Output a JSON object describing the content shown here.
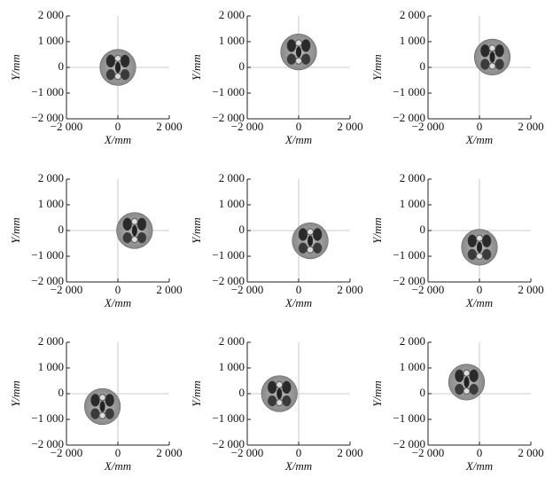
{
  "chart_data": [
    {
      "type": "scatter",
      "x": [
        0
      ],
      "values": [
        0
      ],
      "radius": [
        700
      ],
      "xlim": [
        -2000,
        2000
      ],
      "ylim": [
        -2000,
        2000
      ],
      "xticks": [
        {
          "value": -2000,
          "label": "−2 000"
        },
        0,
        {
          "value": 2000,
          "label": "2 000"
        }
      ],
      "yticks": [
        {
          "value": -2000,
          "label": "−2 000"
        },
        {
          "value": -1000,
          "label": "−1 000"
        },
        0,
        {
          "value": 1000,
          "label": "1 000"
        },
        {
          "value": 2000,
          "label": "2 000"
        }
      ],
      "xlabel": "X/mm",
      "ylabel": "Y/mm",
      "zero_lines": true
    },
    {
      "type": "scatter",
      "x": [
        0
      ],
      "values": [
        600
      ],
      "radius": [
        700
      ],
      "xlim": [
        -2000,
        2000
      ],
      "ylim": [
        -2000,
        2000
      ],
      "xticks": [
        {
          "value": -2000,
          "label": "−2 000"
        },
        0,
        {
          "value": 2000,
          "label": "2 000"
        }
      ],
      "yticks": [
        {
          "value": -2000,
          "label": "−2 000"
        },
        {
          "value": -1000,
          "label": "−1 000"
        },
        0,
        {
          "value": 1000,
          "label": "1 000"
        },
        {
          "value": 2000,
          "label": "2 000"
        }
      ],
      "xlabel": "X/mm",
      "ylabel": "Y/mm",
      "zero_lines": true
    },
    {
      "type": "scatter",
      "x": [
        500
      ],
      "values": [
        400
      ],
      "radius": [
        700
      ],
      "xlim": [
        -2000,
        2000
      ],
      "ylim": [
        -2000,
        2000
      ],
      "xticks": [
        {
          "value": -2000,
          "label": "−2 000"
        },
        0,
        {
          "value": 2000,
          "label": "2 000"
        }
      ],
      "yticks": [
        {
          "value": -2000,
          "label": "−2 000"
        },
        {
          "value": -1000,
          "label": "−1 000"
        },
        0,
        {
          "value": 1000,
          "label": "1 000"
        },
        {
          "value": 2000,
          "label": "2 000"
        }
      ],
      "xlabel": "X/mm",
      "ylabel": "Y/mm",
      "zero_lines": true
    },
    {
      "type": "scatter",
      "x": [
        650
      ],
      "values": [
        0
      ],
      "radius": [
        700
      ],
      "xlim": [
        -2000,
        2000
      ],
      "ylim": [
        -2000,
        2000
      ],
      "xticks": [
        {
          "value": -2000,
          "label": "−2 000"
        },
        0,
        {
          "value": 2000,
          "label": "2 000"
        }
      ],
      "yticks": [
        {
          "value": -2000,
          "label": "−2 000"
        },
        {
          "value": -1000,
          "label": "−1 000"
        },
        0,
        {
          "value": 1000,
          "label": "1 000"
        },
        {
          "value": 2000,
          "label": "2 000"
        }
      ],
      "xlabel": "X/mm",
      "ylabel": "Y/mm",
      "zero_lines": true
    },
    {
      "type": "scatter",
      "x": [
        450
      ],
      "values": [
        -400
      ],
      "radius": [
        700
      ],
      "xlim": [
        -2000,
        2000
      ],
      "ylim": [
        -2000,
        2000
      ],
      "xticks": [
        {
          "value": -2000,
          "label": "−2 000"
        },
        0,
        {
          "value": 2000,
          "label": "2 000"
        }
      ],
      "yticks": [
        {
          "value": -2000,
          "label": "−2 000"
        },
        {
          "value": -1000,
          "label": "−1 000"
        },
        0,
        {
          "value": 1000,
          "label": "1 000"
        },
        {
          "value": 2000,
          "label": "2 000"
        }
      ],
      "xlabel": "X/mm",
      "ylabel": "Y/mm",
      "zero_lines": true
    },
    {
      "type": "scatter",
      "x": [
        0
      ],
      "values": [
        -650
      ],
      "radius": [
        700
      ],
      "xlim": [
        -2000,
        2000
      ],
      "ylim": [
        -2000,
        2000
      ],
      "xticks": [
        {
          "value": -2000,
          "label": "−2 000"
        },
        0,
        {
          "value": 2000,
          "label": "2 000"
        }
      ],
      "yticks": [
        {
          "value": -2000,
          "label": "−2 000"
        },
        {
          "value": -1000,
          "label": "−1 000"
        },
        0,
        {
          "value": 1000,
          "label": "1 000"
        },
        {
          "value": 2000,
          "label": "2 000"
        }
      ],
      "xlabel": "X/mm",
      "ylabel": "Y/mm",
      "zero_lines": true
    },
    {
      "type": "scatter",
      "x": [
        -600
      ],
      "values": [
        -500
      ],
      "radius": [
        700
      ],
      "xlim": [
        -2000,
        2000
      ],
      "ylim": [
        -2000,
        2000
      ],
      "xticks": [
        {
          "value": -2000,
          "label": "−2 000"
        },
        0,
        {
          "value": 2000,
          "label": "2 000"
        }
      ],
      "yticks": [
        {
          "value": -2000,
          "label": "−2 000"
        },
        {
          "value": -1000,
          "label": "−1 000"
        },
        0,
        {
          "value": 1000,
          "label": "1 000"
        },
        {
          "value": 2000,
          "label": "2 000"
        }
      ],
      "xlabel": "X/mm",
      "ylabel": "Y/mm",
      "zero_lines": true
    },
    {
      "type": "scatter",
      "x": [
        -750
      ],
      "values": [
        0
      ],
      "radius": [
        700
      ],
      "xlim": [
        -2000,
        2000
      ],
      "ylim": [
        -2000,
        2000
      ],
      "xticks": [
        {
          "value": -2000,
          "label": "−2 000"
        },
        0,
        {
          "value": 2000,
          "label": "2 000"
        }
      ],
      "yticks": [
        {
          "value": -2000,
          "label": "−2 000"
        },
        {
          "value": -1000,
          "label": "−1 000"
        },
        0,
        {
          "value": 1000,
          "label": "1 000"
        },
        {
          "value": 2000,
          "label": "2 000"
        }
      ],
      "xlabel": "X/mm",
      "ylabel": "Y/mm",
      "zero_lines": true
    },
    {
      "type": "scatter",
      "x": [
        -500
      ],
      "values": [
        450
      ],
      "radius": [
        700
      ],
      "xlim": [
        -2000,
        2000
      ],
      "ylim": [
        -2000,
        2000
      ],
      "xticks": [
        {
          "value": -2000,
          "label": "−2 000"
        },
        0,
        {
          "value": 2000,
          "label": "2 000"
        }
      ],
      "yticks": [
        {
          "value": -2000,
          "label": "−2 000"
        },
        {
          "value": -1000,
          "label": "−1 000"
        },
        0,
        {
          "value": 1000,
          "label": "1 000"
        },
        {
          "value": 2000,
          "label": "2 000"
        }
      ],
      "xlabel": "X/mm",
      "ylabel": "Y/mm",
      "zero_lines": true
    }
  ]
}
